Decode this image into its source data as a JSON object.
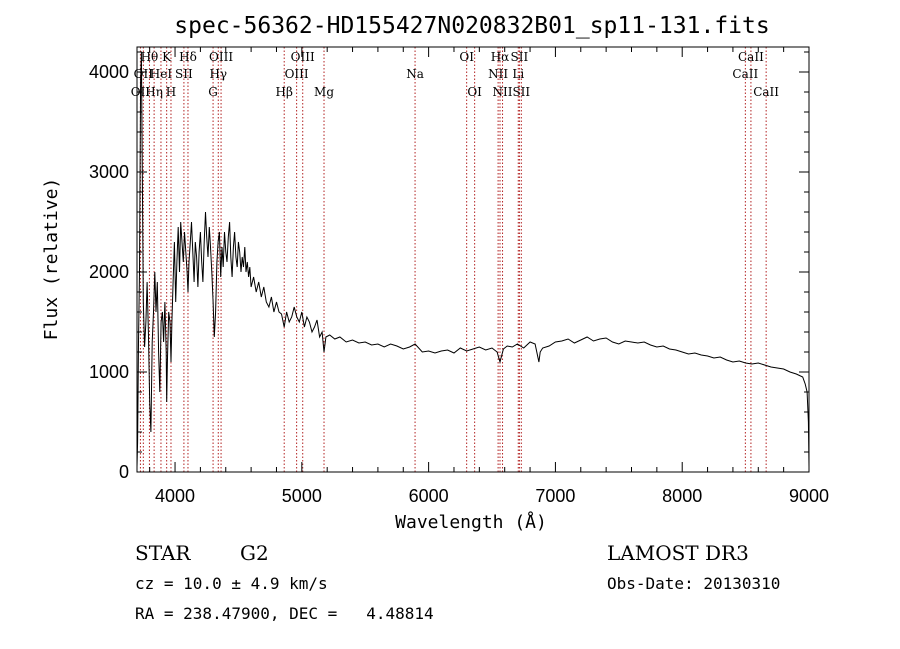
{
  "chart_data": {
    "type": "line",
    "title": "spec-56362-HD155427N020832B01_sp11-131.fits",
    "xlabel": "Wavelength (Å)",
    "ylabel": "Flux (relative)",
    "xlim": [
      3700,
      9000
    ],
    "ylim": [
      0,
      4250
    ],
    "x_ticks": [
      4000,
      5000,
      6000,
      7000,
      8000,
      9000
    ],
    "y_ticks": [
      0,
      1000,
      2000,
      3000,
      4000
    ],
    "grid": false,
    "line_color": "#000000",
    "marker_color": "#b22222",
    "spectral_lines": [
      {
        "x": 3727,
        "label": "OII",
        "row": 2
      },
      {
        "x": 3750,
        "label": "OII",
        "row": 1
      },
      {
        "x": 3798,
        "label": "Hθ",
        "row": 0
      },
      {
        "x": 3835,
        "label": "Hη",
        "row": 2
      },
      {
        "x": 3889,
        "label": "HeI",
        "row": 1
      },
      {
        "x": 3934,
        "label": "K",
        "row": 0
      },
      {
        "x": 3968,
        "label": "H",
        "row": 2
      },
      {
        "x": 4070,
        "label": "SII",
        "row": 1
      },
      {
        "x": 4102,
        "label": "Hδ",
        "row": 0
      },
      {
        "x": 4300,
        "label": "G",
        "row": 2
      },
      {
        "x": 4341,
        "label": "Hγ",
        "row": 1
      },
      {
        "x": 4363,
        "label": "OIII",
        "row": 0
      },
      {
        "x": 4861,
        "label": "Hβ",
        "row": 2
      },
      {
        "x": 4959,
        "label": "OIII",
        "row": 1
      },
      {
        "x": 5007,
        "label": "OIII",
        "row": 0
      },
      {
        "x": 5175,
        "label": "Mg",
        "row": 2
      },
      {
        "x": 5893,
        "label": "Na",
        "row": 1
      },
      {
        "x": 6300,
        "label": "OI",
        "row": 0
      },
      {
        "x": 6363,
        "label": "OI",
        "row": 2
      },
      {
        "x": 6548,
        "label": "NII",
        "row": 1
      },
      {
        "x": 6563,
        "label": "Hα",
        "row": 0
      },
      {
        "x": 6583,
        "label": "NII",
        "row": 2
      },
      {
        "x": 6707,
        "label": "Li",
        "row": 1
      },
      {
        "x": 6716,
        "label": "SII",
        "row": 0
      },
      {
        "x": 6731,
        "label": "SII",
        "row": 2
      },
      {
        "x": 8498,
        "label": "CaII",
        "row": 1
      },
      {
        "x": 8542,
        "label": "CaII",
        "row": 0
      },
      {
        "x": 8662,
        "label": "CaII",
        "row": 2
      }
    ],
    "spectrum": {
      "x": [
        3700,
        3705,
        3712,
        3720,
        3728,
        3735,
        3742,
        3750,
        3760,
        3770,
        3780,
        3790,
        3800,
        3810,
        3820,
        3830,
        3840,
        3850,
        3860,
        3870,
        3880,
        3890,
        3900,
        3910,
        3920,
        3930,
        3934,
        3940,
        3950,
        3960,
        3968,
        3975,
        3985,
        3995,
        4005,
        4015,
        4025,
        4035,
        4045,
        4055,
        4065,
        4075,
        4085,
        4095,
        4102,
        4110,
        4120,
        4130,
        4140,
        4150,
        4160,
        4170,
        4180,
        4190,
        4200,
        4210,
        4220,
        4230,
        4240,
        4250,
        4260,
        4270,
        4280,
        4290,
        4300,
        4310,
        4320,
        4330,
        4340,
        4350,
        4360,
        4370,
        4380,
        4390,
        4400,
        4410,
        4420,
        4430,
        4440,
        4450,
        4460,
        4470,
        4480,
        4490,
        4500,
        4510,
        4520,
        4530,
        4540,
        4550,
        4560,
        4570,
        4580,
        4590,
        4600,
        4620,
        4640,
        4660,
        4680,
        4700,
        4720,
        4740,
        4760,
        4780,
        4800,
        4820,
        4840,
        4861,
        4880,
        4900,
        4920,
        4940,
        4960,
        4980,
        5000,
        5020,
        5040,
        5060,
        5080,
        5100,
        5120,
        5140,
        5160,
        5175,
        5190,
        5220,
        5260,
        5300,
        5350,
        5400,
        5450,
        5500,
        5550,
        5600,
        5650,
        5700,
        5750,
        5800,
        5850,
        5893,
        5950,
        6000,
        6050,
        6100,
        6150,
        6200,
        6250,
        6300,
        6350,
        6400,
        6450,
        6500,
        6540,
        6563,
        6590,
        6620,
        6660,
        6700,
        6750,
        6800,
        6840,
        6870,
        6880,
        6900,
        6950,
        7000,
        7050,
        7100,
        7150,
        7200,
        7250,
        7300,
        7350,
        7400,
        7450,
        7500,
        7550,
        7600,
        7650,
        7700,
        7750,
        7800,
        7850,
        7900,
        7950,
        8000,
        8050,
        8100,
        8150,
        8200,
        8250,
        8300,
        8350,
        8400,
        8450,
        8500,
        8550,
        8600,
        8650,
        8700,
        8750,
        8800,
        8850,
        8900,
        8950,
        8970,
        8985,
        8995,
        9000
      ],
      "y": [
        50,
        300,
        1300,
        2000,
        3900,
        4200,
        3000,
        1700,
        1250,
        1500,
        1900,
        1400,
        700,
        400,
        1300,
        1600,
        2000,
        1600,
        1900,
        1200,
        800,
        1500,
        1600,
        1300,
        1700,
        1200,
        700,
        1100,
        1600,
        1500,
        1100,
        1500,
        1900,
        2300,
        1700,
        2100,
        2450,
        2000,
        2500,
        2300,
        2100,
        2400,
        2200,
        2000,
        1800,
        2100,
        2300,
        2500,
        2200,
        1900,
        2300,
        2150,
        1850,
        2200,
        2400,
        2100,
        1900,
        2300,
        2600,
        2350,
        2150,
        2450,
        2250,
        2000,
        1700,
        1350,
        1600,
        2100,
        2300,
        2400,
        1950,
        2250,
        2050,
        2400,
        2200,
        2100,
        2350,
        2500,
        2150,
        1950,
        2250,
        2400,
        2150,
        2050,
        2300,
        2200,
        2000,
        2150,
        2050,
        2250,
        2000,
        2100,
        1950,
        2050,
        1850,
        1950,
        1800,
        1900,
        1750,
        1850,
        1700,
        1650,
        1750,
        1600,
        1700,
        1600,
        1580,
        1450,
        1600,
        1500,
        1550,
        1650,
        1550,
        1500,
        1600,
        1450,
        1550,
        1500,
        1400,
        1450,
        1520,
        1350,
        1400,
        1200,
        1350,
        1370,
        1330,
        1350,
        1300,
        1320,
        1290,
        1300,
        1270,
        1280,
        1250,
        1280,
        1260,
        1230,
        1250,
        1280,
        1200,
        1210,
        1190,
        1210,
        1220,
        1190,
        1240,
        1210,
        1230,
        1250,
        1220,
        1240,
        1200,
        1100,
        1230,
        1260,
        1250,
        1280,
        1240,
        1300,
        1280,
        1100,
        1200,
        1240,
        1260,
        1300,
        1310,
        1330,
        1290,
        1320,
        1350,
        1310,
        1330,
        1340,
        1300,
        1280,
        1310,
        1300,
        1290,
        1300,
        1270,
        1250,
        1260,
        1230,
        1220,
        1200,
        1180,
        1190,
        1170,
        1160,
        1140,
        1150,
        1120,
        1100,
        1110,
        1090,
        1080,
        1090,
        1070,
        1050,
        1040,
        1030,
        1000,
        980,
        950,
        880,
        800,
        500,
        50
      ]
    }
  },
  "info": {
    "object_class": "STAR",
    "subclass": "G2",
    "survey": "LAMOST DR3",
    "cz": "cz = 10.0 ± 4.9 km/s",
    "obs_date": "Obs-Date: 20130310",
    "coords": "RA = 238.47900, DEC =   4.48814"
  }
}
